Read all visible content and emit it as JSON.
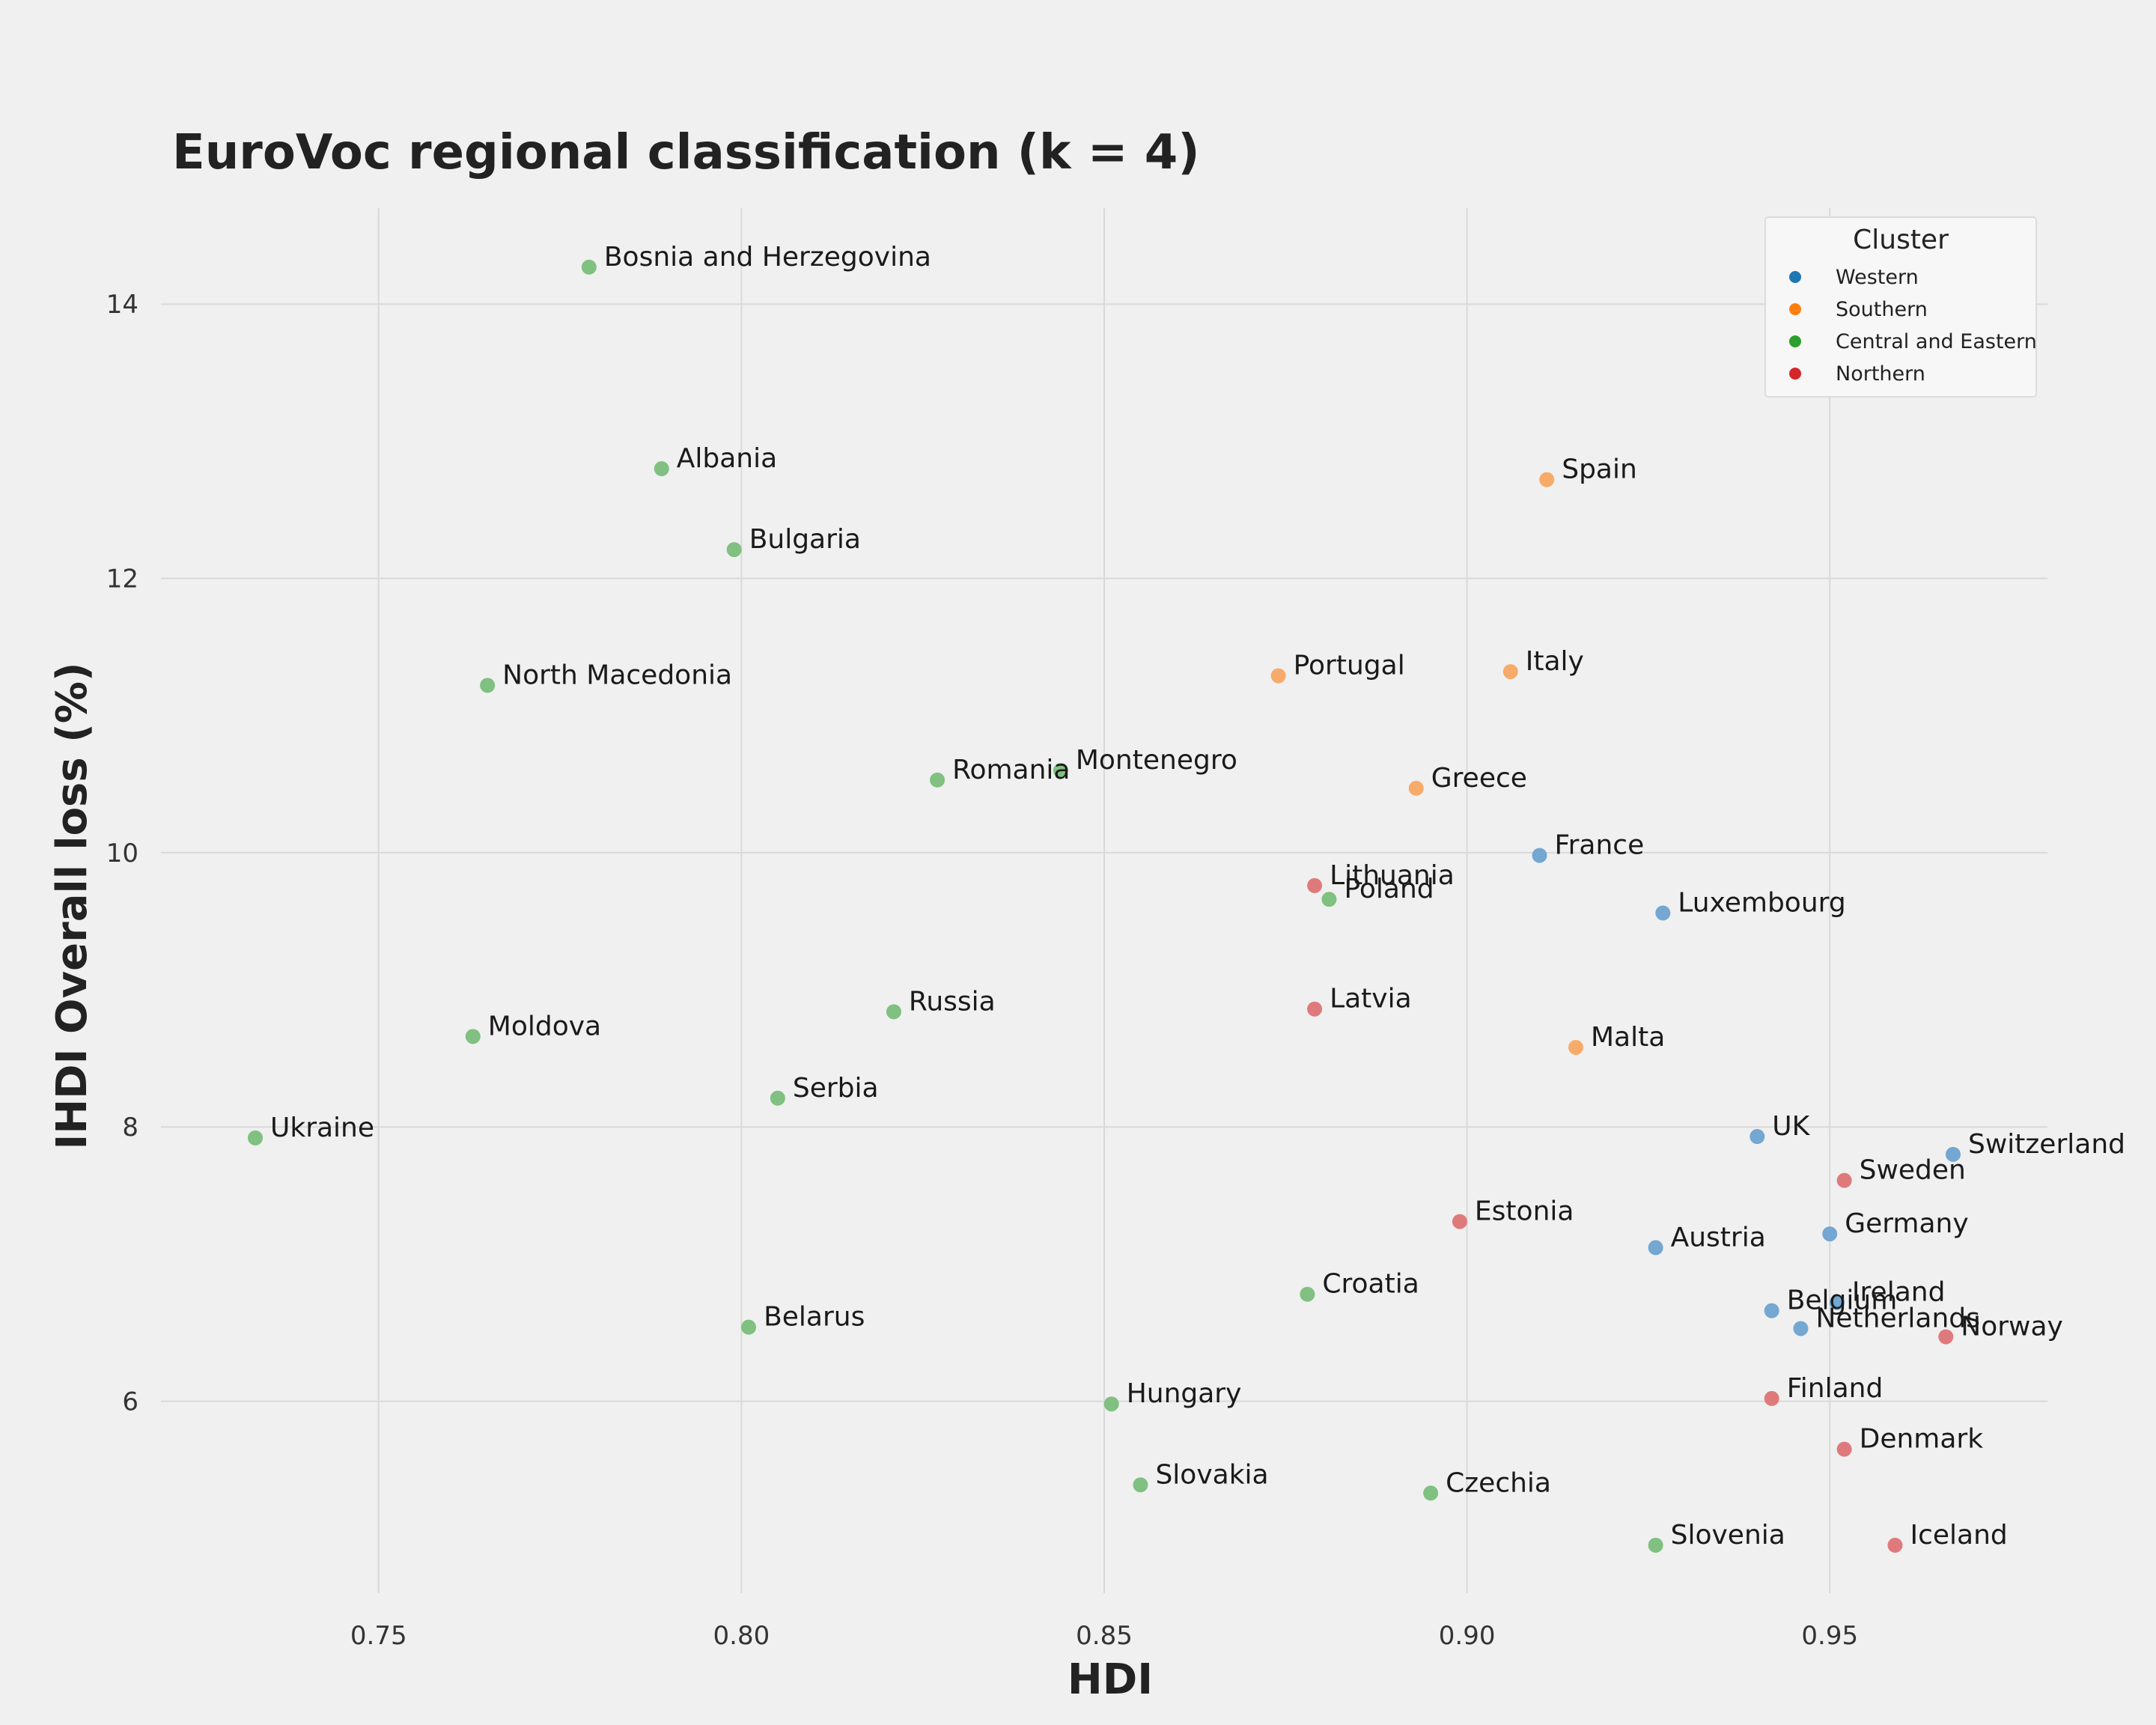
{
  "chart_data": {
    "type": "scatter",
    "title": "EuroVoc regional classification (k = 4)",
    "xlabel": "HDI",
    "ylabel": "IHDI Overall loss (%)",
    "xlim": [
      0.72,
      0.98
    ],
    "ylim": [
      4.6,
      14.7
    ],
    "xticks": [
      0.75,
      0.8,
      0.85,
      0.9,
      0.95
    ],
    "xtick_labels": [
      "0.75",
      "0.80",
      "0.85",
      "0.90",
      "0.95"
    ],
    "yticks": [
      6,
      8,
      10,
      12,
      14
    ],
    "ytick_labels": [
      "6",
      "8",
      "10",
      "12",
      "14"
    ],
    "grid": true,
    "legend": {
      "title": "Cluster",
      "placement": "top-right",
      "entries": [
        {
          "name": "Western",
          "color": "#1f77b4"
        },
        {
          "name": "Southern",
          "color": "#ff7f0e"
        },
        {
          "name": "Central and Eastern",
          "color": "#2ca02c"
        },
        {
          "name": "Northern",
          "color": "#d62728"
        }
      ]
    },
    "point_colors": {
      "Western": "#74a7d1",
      "Southern": "#f7ab6a",
      "Central and Eastern": "#80c080",
      "Northern": "#df7a7c"
    },
    "series": [
      {
        "name": "Western",
        "points": [
          {
            "label": "France",
            "x": 0.91,
            "y": 9.98
          },
          {
            "label": "Luxembourg",
            "x": 0.927,
            "y": 9.56
          },
          {
            "label": "UK",
            "x": 0.94,
            "y": 7.93
          },
          {
            "label": "Switzerland",
            "x": 0.967,
            "y": 7.8
          },
          {
            "label": "Germany",
            "x": 0.95,
            "y": 7.22
          },
          {
            "label": "Austria",
            "x": 0.926,
            "y": 7.12
          },
          {
            "label": "Belgium",
            "x": 0.942,
            "y": 6.66
          },
          {
            "label": "Ireland",
            "x": 0.951,
            "y": 6.72
          },
          {
            "label": "Netherlands",
            "x": 0.946,
            "y": 6.53
          }
        ]
      },
      {
        "name": "Southern",
        "points": [
          {
            "label": "Spain",
            "x": 0.911,
            "y": 12.72
          },
          {
            "label": "Italy",
            "x": 0.906,
            "y": 11.32
          },
          {
            "label": "Portugal",
            "x": 0.874,
            "y": 11.29
          },
          {
            "label": "Greece",
            "x": 0.893,
            "y": 10.47
          },
          {
            "label": "Malta",
            "x": 0.915,
            "y": 8.58
          }
        ]
      },
      {
        "name": "Central and Eastern",
        "points": [
          {
            "label": "Bosnia and Herzegovina",
            "x": 0.779,
            "y": 14.27
          },
          {
            "label": "Albania",
            "x": 0.789,
            "y": 12.8
          },
          {
            "label": "Bulgaria",
            "x": 0.799,
            "y": 12.21
          },
          {
            "label": "North Macedonia",
            "x": 0.765,
            "y": 11.22
          },
          {
            "label": "Romania",
            "x": 0.827,
            "y": 10.53
          },
          {
            "label": "Montenegro",
            "x": 0.844,
            "y": 10.6
          },
          {
            "label": "Poland",
            "x": 0.881,
            "y": 9.66
          },
          {
            "label": "Russia",
            "x": 0.821,
            "y": 8.84
          },
          {
            "label": "Moldova",
            "x": 0.763,
            "y": 8.66
          },
          {
            "label": "Serbia",
            "x": 0.805,
            "y": 8.21
          },
          {
            "label": "Ukraine",
            "x": 0.733,
            "y": 7.92
          },
          {
            "label": "Croatia",
            "x": 0.878,
            "y": 6.78
          },
          {
            "label": "Belarus",
            "x": 0.801,
            "y": 6.54
          },
          {
            "label": "Hungary",
            "x": 0.851,
            "y": 5.98
          },
          {
            "label": "Slovakia",
            "x": 0.855,
            "y": 5.39
          },
          {
            "label": "Czechia",
            "x": 0.895,
            "y": 5.33
          },
          {
            "label": "Slovenia",
            "x": 0.926,
            "y": 4.95
          }
        ]
      },
      {
        "name": "Northern",
        "points": [
          {
            "label": "Lithuania",
            "x": 0.879,
            "y": 9.76
          },
          {
            "label": "Latvia",
            "x": 0.879,
            "y": 8.86
          },
          {
            "label": "Estonia",
            "x": 0.899,
            "y": 7.31
          },
          {
            "label": "Sweden",
            "x": 0.952,
            "y": 7.61
          },
          {
            "label": "Norway",
            "x": 0.966,
            "y": 6.47
          },
          {
            "label": "Finland",
            "x": 0.942,
            "y": 6.02
          },
          {
            "label": "Denmark",
            "x": 0.952,
            "y": 5.65
          },
          {
            "label": "Iceland",
            "x": 0.959,
            "y": 4.95
          }
        ]
      }
    ]
  }
}
